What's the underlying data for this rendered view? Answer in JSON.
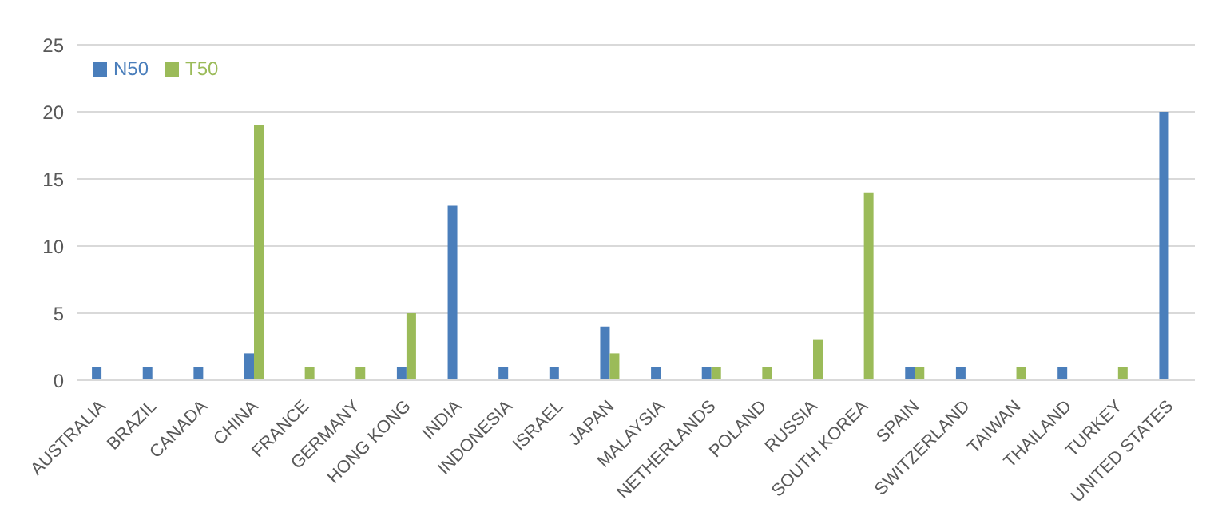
{
  "chart_data": {
    "type": "bar",
    "categories": [
      "AUSTRALIA",
      "BRAZIL",
      "CANADA",
      "CHINA",
      "FRANCE",
      "GERMANY",
      "HONG KONG",
      "INDIA",
      "INDONESIA",
      "ISRAEL",
      "JAPAN",
      "MALAYSIA",
      "NETHERLANDS",
      "POLAND",
      "RUSSIA",
      "SOUTH KOREA",
      "SPAIN",
      "SWITZERLAND",
      "TAIWAN",
      "THAILAND",
      "TURKEY",
      "UNITED STATES"
    ],
    "series": [
      {
        "name": "N50",
        "color": "#4a7ebb",
        "values": [
          1,
          1,
          1,
          2,
          0,
          0,
          1,
          13,
          1,
          1,
          4,
          1,
          1,
          0,
          0,
          0,
          1,
          1,
          0,
          1,
          0,
          20
        ]
      },
      {
        "name": "T50",
        "color": "#9bbb59",
        "values": [
          0,
          0,
          0,
          19,
          1,
          1,
          5,
          0,
          0,
          0,
          2,
          0,
          1,
          1,
          3,
          14,
          1,
          0,
          1,
          0,
          1,
          0
        ]
      }
    ],
    "ylim": [
      0,
      25
    ],
    "yticks": [
      0,
      5,
      10,
      15,
      20,
      25
    ],
    "grid": "y",
    "legend": "top left"
  }
}
